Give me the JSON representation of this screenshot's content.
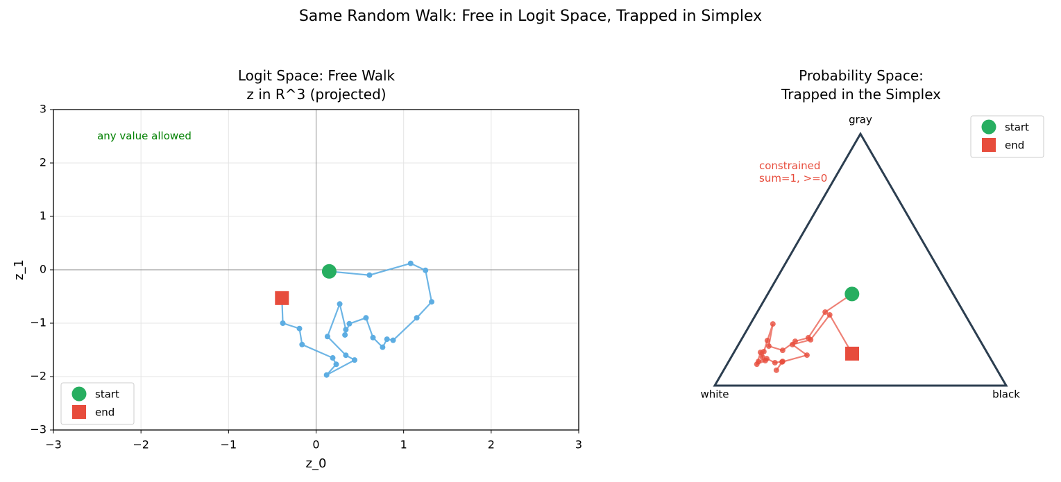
{
  "suptitle": "Same Random Walk: Free in Logit Space, Trapped in Simplex",
  "chart_data": [
    {
      "type": "line",
      "title": "Logit Space: Free Walk\nz in R^3 (projected)",
      "xlabel": "z_0",
      "ylabel": "z_1",
      "annotation": "any value allowed",
      "annotation_color": "#008000",
      "xlim": [
        -3,
        3
      ],
      "ylim": [
        -3,
        3
      ],
      "xticks": [
        {
          "value": -3,
          "label": "−3"
        },
        {
          "value": -2,
          "label": "−2"
        },
        {
          "value": -1,
          "label": "−1"
        },
        0,
        1,
        2,
        3
      ],
      "yticks": [
        {
          "value": -3,
          "label": "−3"
        },
        {
          "value": -2,
          "label": "−2"
        },
        {
          "value": -1,
          "label": "−1"
        },
        0,
        1,
        2,
        3
      ],
      "grid": true,
      "legend": "lower left",
      "walk": {
        "color": "#5dade2",
        "x": [
          0.15,
          0.61,
          1.08,
          1.25,
          1.32,
          1.15,
          0.88,
          0.81,
          0.76,
          0.65,
          0.57,
          0.38,
          0.33,
          0.34,
          0.27,
          0.13,
          0.34,
          0.44,
          0.12,
          0.23,
          0.19,
          -0.16,
          -0.19,
          -0.38,
          -0.39
        ],
        "y": [
          -0.03,
          -0.1,
          0.12,
          -0.01,
          -0.6,
          -0.9,
          -1.32,
          -1.3,
          -1.45,
          -1.27,
          -0.9,
          -1.01,
          -1.22,
          -1.12,
          -0.64,
          -1.25,
          -1.6,
          -1.69,
          -1.97,
          -1.77,
          -1.65,
          -1.4,
          -1.1,
          -1.0,
          -0.53
        ]
      },
      "series": [
        {
          "name": "start",
          "color": "#27ae60",
          "marker": "circle",
          "x": [
            0.15
          ],
          "values": [
            -0.03
          ]
        },
        {
          "name": "end",
          "color": "#e74c3c",
          "marker": "square",
          "x": [
            -0.39
          ],
          "values": [
            -0.53
          ]
        }
      ]
    },
    {
      "type": "ternary",
      "title": "Probability Space:\nTrapped in the Simplex",
      "vertices": [
        "white",
        "gray",
        "black"
      ],
      "frame_color": "#2c3e50",
      "annotation": "constrained\nsum=1, >=0",
      "legend": "upper right",
      "walk": {
        "color": "#e74c3c",
        "gray": [
          0.364,
          0.292,
          0.19,
          0.176,
          0.14,
          0.157,
          0.245,
          0.179,
          0.135,
          0.113,
          0.132,
          0.085,
          0.099,
          0.096,
          0.107,
          0.091,
          0.096,
          0.061,
          0.094,
          0.121,
          0.163,
          0.182,
          0.281,
          0.127
        ],
        "black": [
          0.289,
          0.233,
          0.226,
          0.188,
          0.163,
          0.107,
          0.077,
          0.091,
          0.101,
          0.107,
          0.091,
          0.102,
          0.124,
          0.102,
          0.125,
          0.161,
          0.185,
          0.181,
          0.184,
          0.256,
          0.185,
          0.238,
          0.254,
          0.408
        ]
      },
      "series": [
        {
          "name": "start",
          "color": "#27ae60",
          "marker": "circle",
          "gray": [
            0.364
          ],
          "black": [
            0.289
          ]
        },
        {
          "name": "end",
          "color": "#e74c3c",
          "marker": "square",
          "gray": [
            0.127
          ],
          "black": [
            0.408
          ]
        }
      ]
    }
  ]
}
